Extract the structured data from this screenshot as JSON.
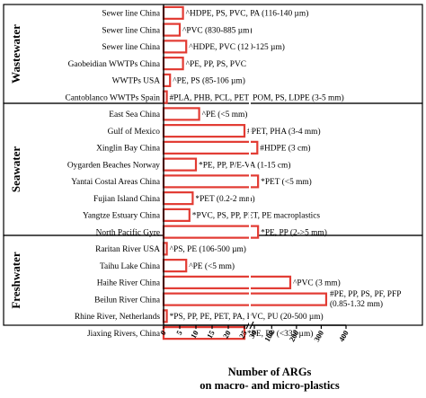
{
  "chart_data": {
    "type": "bar",
    "orientation": "horizontal",
    "xlabel_lines": [
      "Number of ARGs",
      "on macro- and micro-plastics"
    ],
    "xaxis": {
      "broken": true,
      "segment1": {
        "range": [
          0,
          25
        ],
        "ticks": [
          0,
          5,
          10,
          15,
          20,
          25
        ]
      },
      "segment2": {
        "range": [
          30,
          400
        ],
        "ticks": [
          30,
          100,
          200,
          300,
          400
        ]
      }
    },
    "bar_color": "#e23b33",
    "groups": [
      {
        "name": "Wastewater",
        "rows": [
          {
            "category": "Sewer line China",
            "value": 6,
            "annotation": "^HDPE, PS, PVC, PA (116-140 µm)"
          },
          {
            "category": "Sewer line China",
            "value": 5,
            "annotation": "^PVC (830-885 µm)"
          },
          {
            "category": "Sewer line China",
            "value": 7,
            "annotation": "^HDPE, PVC (120-125 µm)"
          },
          {
            "category": "Gaobeidian WWTPs China",
            "value": 6,
            "annotation": "^PE, PP, PS, PVC"
          },
          {
            "category": "WWTPs USA",
            "value": 2,
            "annotation": "^PE, PS (85-106 µm)"
          },
          {
            "category": "Cantoblanco WWTPs Spain",
            "value": 1,
            "annotation": "#PLA, PHB, PCL, PET, POM, PS, LDPE (3-5 mm)"
          }
        ]
      },
      {
        "name": "Seawater",
        "rows": [
          {
            "category": "East Sea China",
            "value": 11,
            "annotation": "^PE (<5 mm)"
          },
          {
            "category": "Gulf of Mexico",
            "value": 25,
            "annotation": "#PET, PHA (3-4 mm)"
          },
          {
            "category": "Xinglin Bay China",
            "value": 42,
            "annotation": "#HDPE (3 cm)"
          },
          {
            "category": "Oygarden Beaches Norway",
            "value": 10,
            "annotation": "*PE, PP, P/E-VA (1-15 cm)"
          },
          {
            "category": "Yantai Costal Areas China",
            "value": 45,
            "annotation": "*PET (<5 mm)"
          },
          {
            "category": "Fujian Island China",
            "value": 9,
            "annotation": "*PET (0.2-2 mm)"
          },
          {
            "category": "Yangtze Estuary China",
            "value": 8,
            "annotation": "*PVC, PS, PP, PET, PE macroplastics"
          },
          {
            "category": "North Pacific Gyre",
            "value": 45,
            "annotation": "*PE, PP (2->5 mm)"
          }
        ]
      },
      {
        "name": "Freshwater",
        "rows": [
          {
            "category": "Raritan River USA",
            "value": 1,
            "annotation": "^PS, PE (106-500 µm)"
          },
          {
            "category": "Taihu Lake China",
            "value": 7,
            "annotation": "^PE (<5 mm)"
          },
          {
            "category": "Haihe River China",
            "value": 175,
            "annotation": "^PVC (3 mm)"
          },
          {
            "category": "Beilun River China",
            "value": 320,
            "annotation_lines": [
              "#PE, PP, PS, PF, PFP",
              "(0.85-1.32 mm)"
            ]
          },
          {
            "category": "Rhine River, Netherlands",
            "value": 1,
            "annotation": "*PS, PP, PE, PET, PA, PVC, PU (20-500 µm)"
          },
          {
            "category": "Jiaxing Rivers, China",
            "value": 25,
            "annotation": "*PE, PP (<335 µm)"
          }
        ]
      }
    ]
  }
}
